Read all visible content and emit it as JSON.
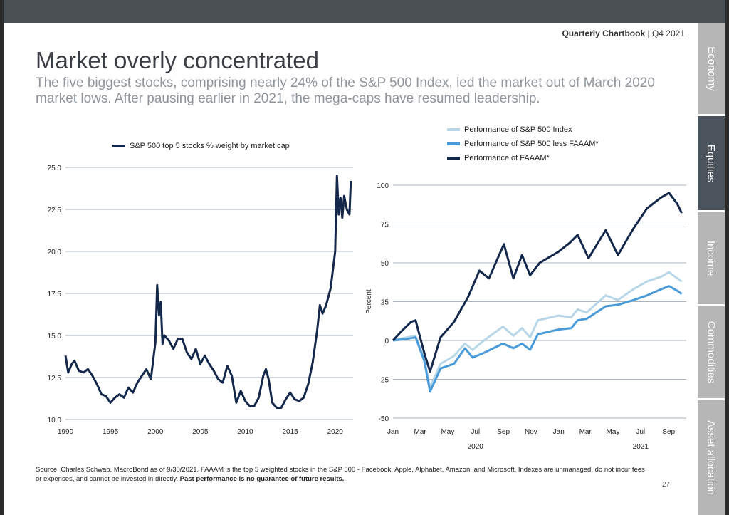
{
  "header": {
    "brand": "Quarterly Chartbook",
    "period": "| Q4 2021"
  },
  "title": "Market overly concentrated",
  "subtitle": "The five biggest stocks, comprising nearly 24% of the S&P 500 Index, led the market out of March 2020 market lows. After pausing earlier in 2021, the mega-caps have resumed leadership.",
  "tabs": [
    {
      "label": "Economy",
      "active": false
    },
    {
      "label": "Equities",
      "active": true
    },
    {
      "label": "Income",
      "active": false
    },
    {
      "label": "Commodities",
      "active": false
    },
    {
      "label": "Asset allocation",
      "active": false
    }
  ],
  "footer": {
    "source": "Source: Charles Schwab, MacroBond as of 9/30/2021. FAAAM is the top 5 weighted stocks in the S&P 500 - Facebook, Apple, Alphabet, Amazon, and Microsoft. Indexes are unmanaged, do not incur fees or expenses, and cannot be invested in directly.",
    "disclaimer": "Past performance is no guarantee of future results.",
    "page": "27"
  },
  "colors": {
    "navy": "#14284b",
    "light_blue": "#b7d7e8",
    "mid_blue": "#4a9bd9"
  },
  "chart_data": [
    {
      "type": "line",
      "legend": [
        "S&P 500 top 5 stocks % weight by market cap"
      ],
      "ylim": [
        10.0,
        25.0
      ],
      "yticks": [
        "10.0",
        "12.5",
        "15.0",
        "17.5",
        "20.0",
        "22.5",
        "25.0"
      ],
      "xlim": [
        1990,
        2022
      ],
      "xticks": [
        "1990",
        "1995",
        "2000",
        "2005",
        "2010",
        "2015",
        "2020"
      ],
      "series": [
        {
          "name": "S&P 500 top 5 stocks % weight by market cap",
          "color": "#14284b",
          "x": [
            1990.0,
            1990.3,
            1990.7,
            1991.0,
            1991.5,
            1992.0,
            1992.5,
            1993.0,
            1993.5,
            1994.0,
            1994.5,
            1995.0,
            1995.5,
            1996.0,
            1996.5,
            1997.0,
            1997.5,
            1998.0,
            1998.5,
            1999.0,
            1999.5,
            2000.0,
            2000.2,
            2000.4,
            2000.6,
            2000.8,
            2001.0,
            2001.5,
            2002.0,
            2002.5,
            2003.0,
            2003.5,
            2004.0,
            2004.5,
            2005.0,
            2005.5,
            2006.0,
            2006.5,
            2007.0,
            2007.5,
            2008.0,
            2008.5,
            2009.0,
            2009.5,
            2010.0,
            2010.5,
            2011.0,
            2011.5,
            2012.0,
            2012.3,
            2012.6,
            2013.0,
            2013.5,
            2014.0,
            2014.5,
            2015.0,
            2015.5,
            2016.0,
            2016.5,
            2017.0,
            2017.5,
            2018.0,
            2018.3,
            2018.6,
            2019.0,
            2019.5,
            2020.0,
            2020.2,
            2020.4,
            2020.6,
            2020.8,
            2021.0,
            2021.3,
            2021.6,
            2021.75
          ],
          "values": [
            13.8,
            12.8,
            13.3,
            13.5,
            12.9,
            12.8,
            13.0,
            12.6,
            12.1,
            11.5,
            11.4,
            11.0,
            11.3,
            11.5,
            11.3,
            11.9,
            11.6,
            12.2,
            12.6,
            13.0,
            12.4,
            14.6,
            18.0,
            16.2,
            17.0,
            14.5,
            15.0,
            14.7,
            14.2,
            14.8,
            14.8,
            14.0,
            13.6,
            14.2,
            13.3,
            13.8,
            13.3,
            12.9,
            12.4,
            12.2,
            13.2,
            12.6,
            11.0,
            11.7,
            11.1,
            10.8,
            10.8,
            11.3,
            12.6,
            13.0,
            12.4,
            11.0,
            10.7,
            10.7,
            11.2,
            11.6,
            11.2,
            11.1,
            11.3,
            12.1,
            13.4,
            15.3,
            16.8,
            16.3,
            16.8,
            17.8,
            20.0,
            24.5,
            22.2,
            23.2,
            22.0,
            23.3,
            22.5,
            22.2,
            24.2
          ]
        }
      ]
    },
    {
      "type": "line",
      "legend": [
        "Performance of S&P 500 Index",
        "Performance of S&P 500 less FAAAM*",
        "Performance of FAAAM*"
      ],
      "ylabel": "Percent",
      "ylim": [
        -50,
        100
      ],
      "yticks": [
        "-50",
        "-25",
        "0",
        "25",
        "50",
        "75",
        "100"
      ],
      "x_months": [
        "Jan",
        "Mar",
        "May",
        "Jul",
        "Sep",
        "Nov",
        "Jan",
        "Mar",
        "May",
        "Jul",
        "Sep"
      ],
      "x_years": [
        "2020",
        "2021"
      ],
      "series": [
        {
          "name": "Performance of S&P 500 Index",
          "color": "#b7d7e8",
          "x": [
            "2020-01-01",
            "2020-02-01",
            "2020-02-20",
            "2020-03-10",
            "2020-03-23",
            "2020-04-15",
            "2020-05-15",
            "2020-06-08",
            "2020-06-25",
            "2020-07-20",
            "2020-08-31",
            "2020-09-23",
            "2020-10-12",
            "2020-10-30",
            "2020-11-16",
            "2020-12-31",
            "2021-01-29",
            "2021-02-12",
            "2021-03-04",
            "2021-04-15",
            "2021-05-12",
            "2021-06-15",
            "2021-07-15",
            "2021-08-15",
            "2021-09-02",
            "2021-09-20",
            "2021-09-30"
          ],
          "values": [
            0,
            2,
            3,
            -12,
            -30,
            -15,
            -10,
            -2,
            -6,
            0,
            9,
            3,
            8,
            2,
            13,
            16,
            15,
            20,
            18,
            29,
            26,
            33,
            38,
            41,
            44,
            40,
            38
          ]
        },
        {
          "name": "Performance of S&P 500 less FAAAM*",
          "color": "#4a9bd9",
          "x": [
            "2020-01-01",
            "2020-02-01",
            "2020-02-20",
            "2020-03-10",
            "2020-03-23",
            "2020-04-15",
            "2020-05-15",
            "2020-06-08",
            "2020-06-25",
            "2020-07-20",
            "2020-08-31",
            "2020-09-23",
            "2020-10-12",
            "2020-10-30",
            "2020-11-16",
            "2020-12-31",
            "2021-01-29",
            "2021-02-12",
            "2021-03-04",
            "2021-04-15",
            "2021-05-12",
            "2021-06-15",
            "2021-07-15",
            "2021-08-15",
            "2021-09-02",
            "2021-09-20",
            "2021-09-30"
          ],
          "values": [
            0,
            1,
            2,
            -13,
            -33,
            -18,
            -15,
            -5,
            -11,
            -8,
            -2,
            -5,
            -2,
            -6,
            4,
            7,
            8,
            13,
            14,
            22,
            23,
            26,
            29,
            33,
            35,
            32,
            30
          ]
        },
        {
          "name": "Performance of FAAAM*",
          "color": "#14284b",
          "x": [
            "2020-01-01",
            "2020-01-20",
            "2020-02-10",
            "2020-02-20",
            "2020-03-10",
            "2020-03-23",
            "2020-04-15",
            "2020-05-15",
            "2020-06-15",
            "2020-07-10",
            "2020-07-31",
            "2020-09-02",
            "2020-09-23",
            "2020-10-12",
            "2020-10-30",
            "2020-11-20",
            "2020-12-31",
            "2021-01-26",
            "2021-02-12",
            "2021-03-08",
            "2021-04-15",
            "2021-05-12",
            "2021-06-15",
            "2021-07-15",
            "2021-08-15",
            "2021-09-02",
            "2021-09-20",
            "2021-09-30"
          ],
          "values": [
            0,
            6,
            12,
            13,
            -8,
            -20,
            2,
            12,
            28,
            45,
            40,
            62,
            40,
            55,
            42,
            50,
            57,
            63,
            68,
            53,
            71,
            55,
            72,
            85,
            92,
            95,
            88,
            82
          ]
        }
      ]
    }
  ]
}
